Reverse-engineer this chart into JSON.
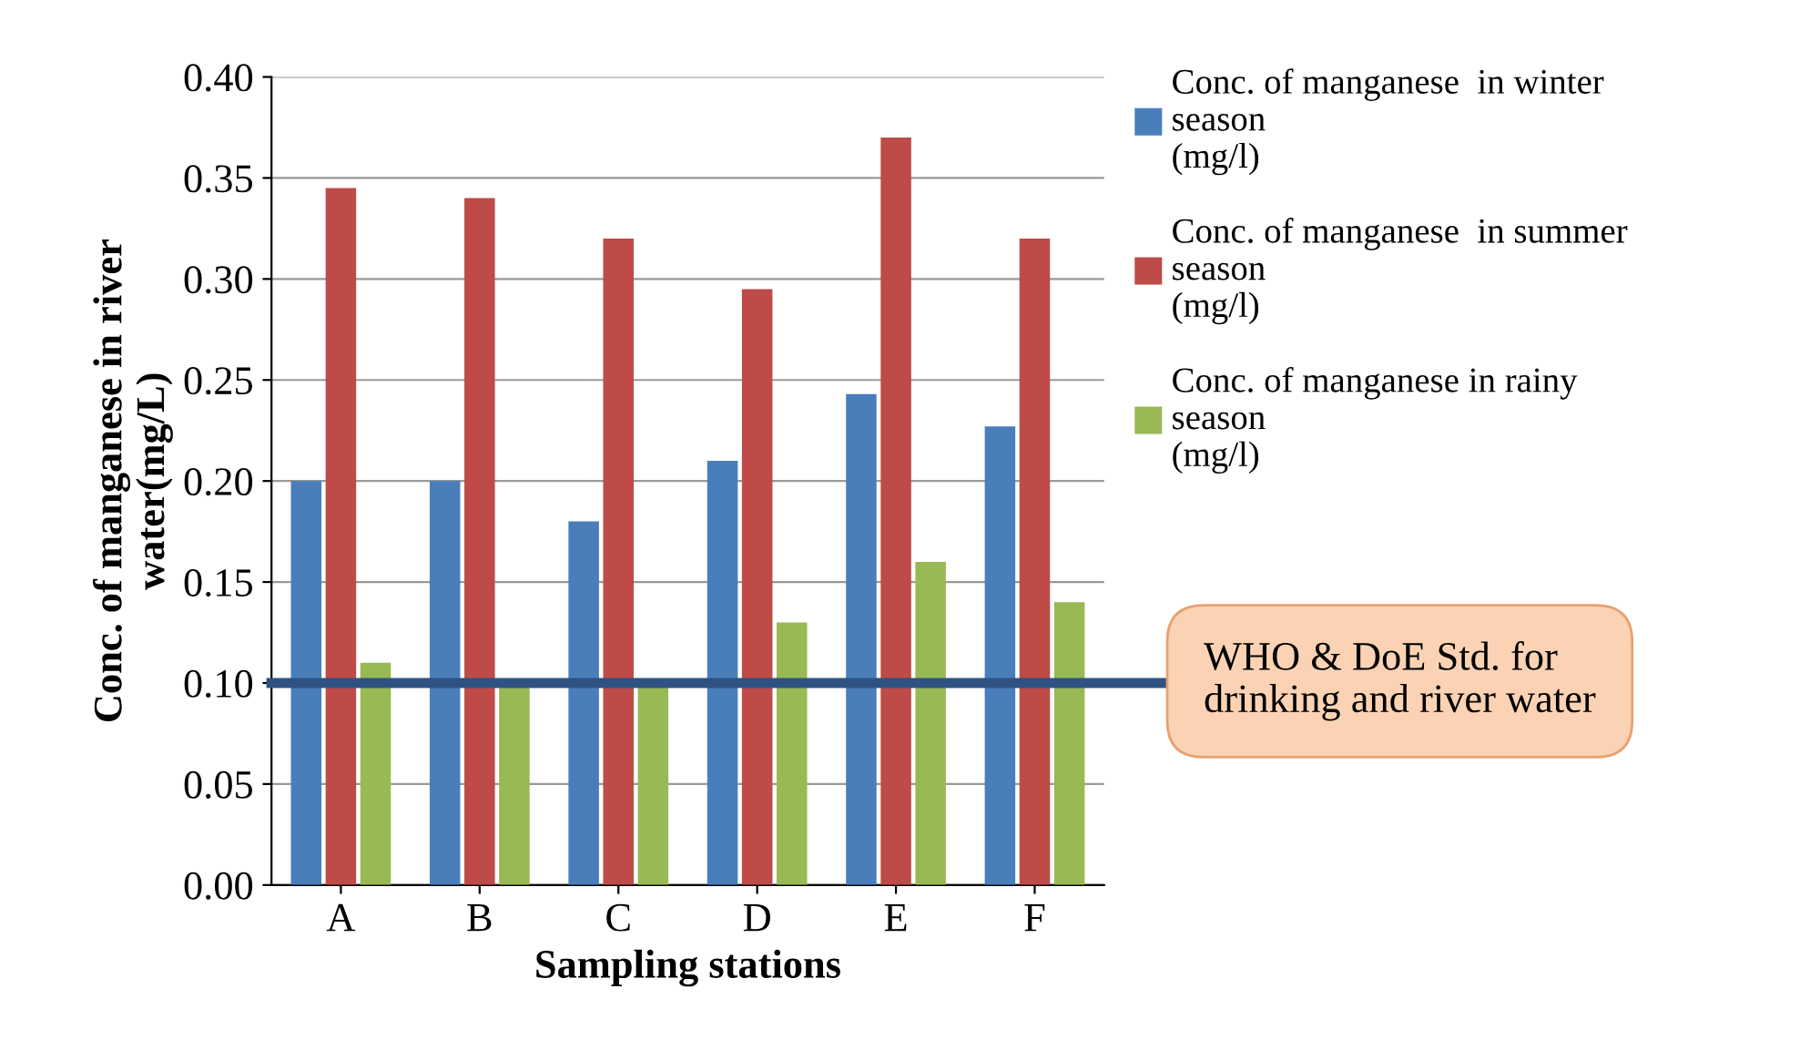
{
  "chart_data": {
    "type": "bar",
    "xlabel": "Sampling stations",
    "ylabel": "Conc. of manganese in river\nwater(mg/L)",
    "categories": [
      "A",
      "B",
      "C",
      "D",
      "E",
      "F"
    ],
    "series": [
      {
        "name": "Conc. of manganese  in winter\nseason\n(mg/l)",
        "color": "#4a7ebb",
        "values": [
          0.2,
          0.2,
          0.18,
          0.21,
          0.243,
          0.227
        ]
      },
      {
        "name": "Conc. of manganese  in summer\nseason\n(mg/l)",
        "color": "#be4b48",
        "values": [
          0.345,
          0.34,
          0.32,
          0.295,
          0.37,
          0.32
        ]
      },
      {
        "name": "Conc. of manganese in rainy\nseason\n(mg/l)",
        "color": "#98b954",
        "values": [
          0.11,
          0.1,
          0.1,
          0.13,
          0.16,
          0.14
        ]
      }
    ],
    "ylim": [
      0,
      0.4
    ],
    "yticks": [
      {
        "value": 0,
        "label": "0.00"
      },
      {
        "value": 0.05,
        "label": "0.05"
      },
      {
        "value": 0.1,
        "label": "0.10"
      },
      {
        "value": 0.15,
        "label": "0.15"
      },
      {
        "value": 0.2,
        "label": "0.20"
      },
      {
        "value": 0.25,
        "label": "0.25"
      },
      {
        "value": 0.3,
        "label": "0.30"
      },
      {
        "value": 0.35,
        "label": "0.35"
      },
      {
        "value": 0.4,
        "label": "0.40"
      }
    ],
    "ref_lines": [
      {
        "axis": "y",
        "value": 0.1,
        "label": "WHO & DoE Std. for\ndrinking and river water",
        "color": "#2e5382"
      }
    ],
    "grid": "y",
    "legend": "right"
  }
}
